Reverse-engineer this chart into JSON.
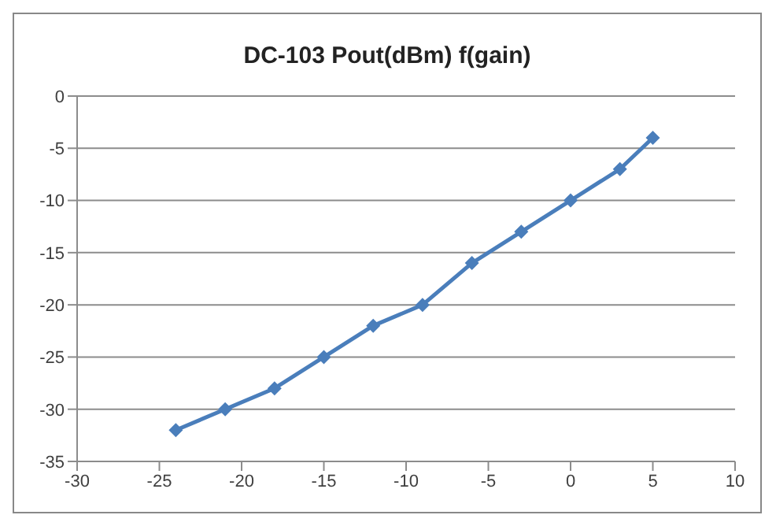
{
  "chart_data": {
    "type": "line",
    "title": "DC-103 Pout(dBm) f(gain)",
    "x": [
      -24,
      -21,
      -18,
      -15,
      -12,
      -9,
      -6,
      -3,
      0,
      3,
      5
    ],
    "series": [
      {
        "color": "#4a7ebb",
        "values": [
          -32,
          -30,
          -28,
          -25,
          -22,
          -20,
          -16,
          -13,
          -10,
          -7,
          -4
        ]
      }
    ],
    "xlim": [
      -30,
      10
    ],
    "xticks": [
      -30,
      -25,
      -20,
      -15,
      -10,
      -5,
      0,
      5,
      10
    ],
    "ylim": [
      -35,
      0
    ],
    "yticks": [
      -35,
      -30,
      -25,
      -20,
      -15,
      -10,
      -5,
      0
    ],
    "grid": "y",
    "marker": "diamond",
    "line_style": "solid",
    "legend": false
  }
}
